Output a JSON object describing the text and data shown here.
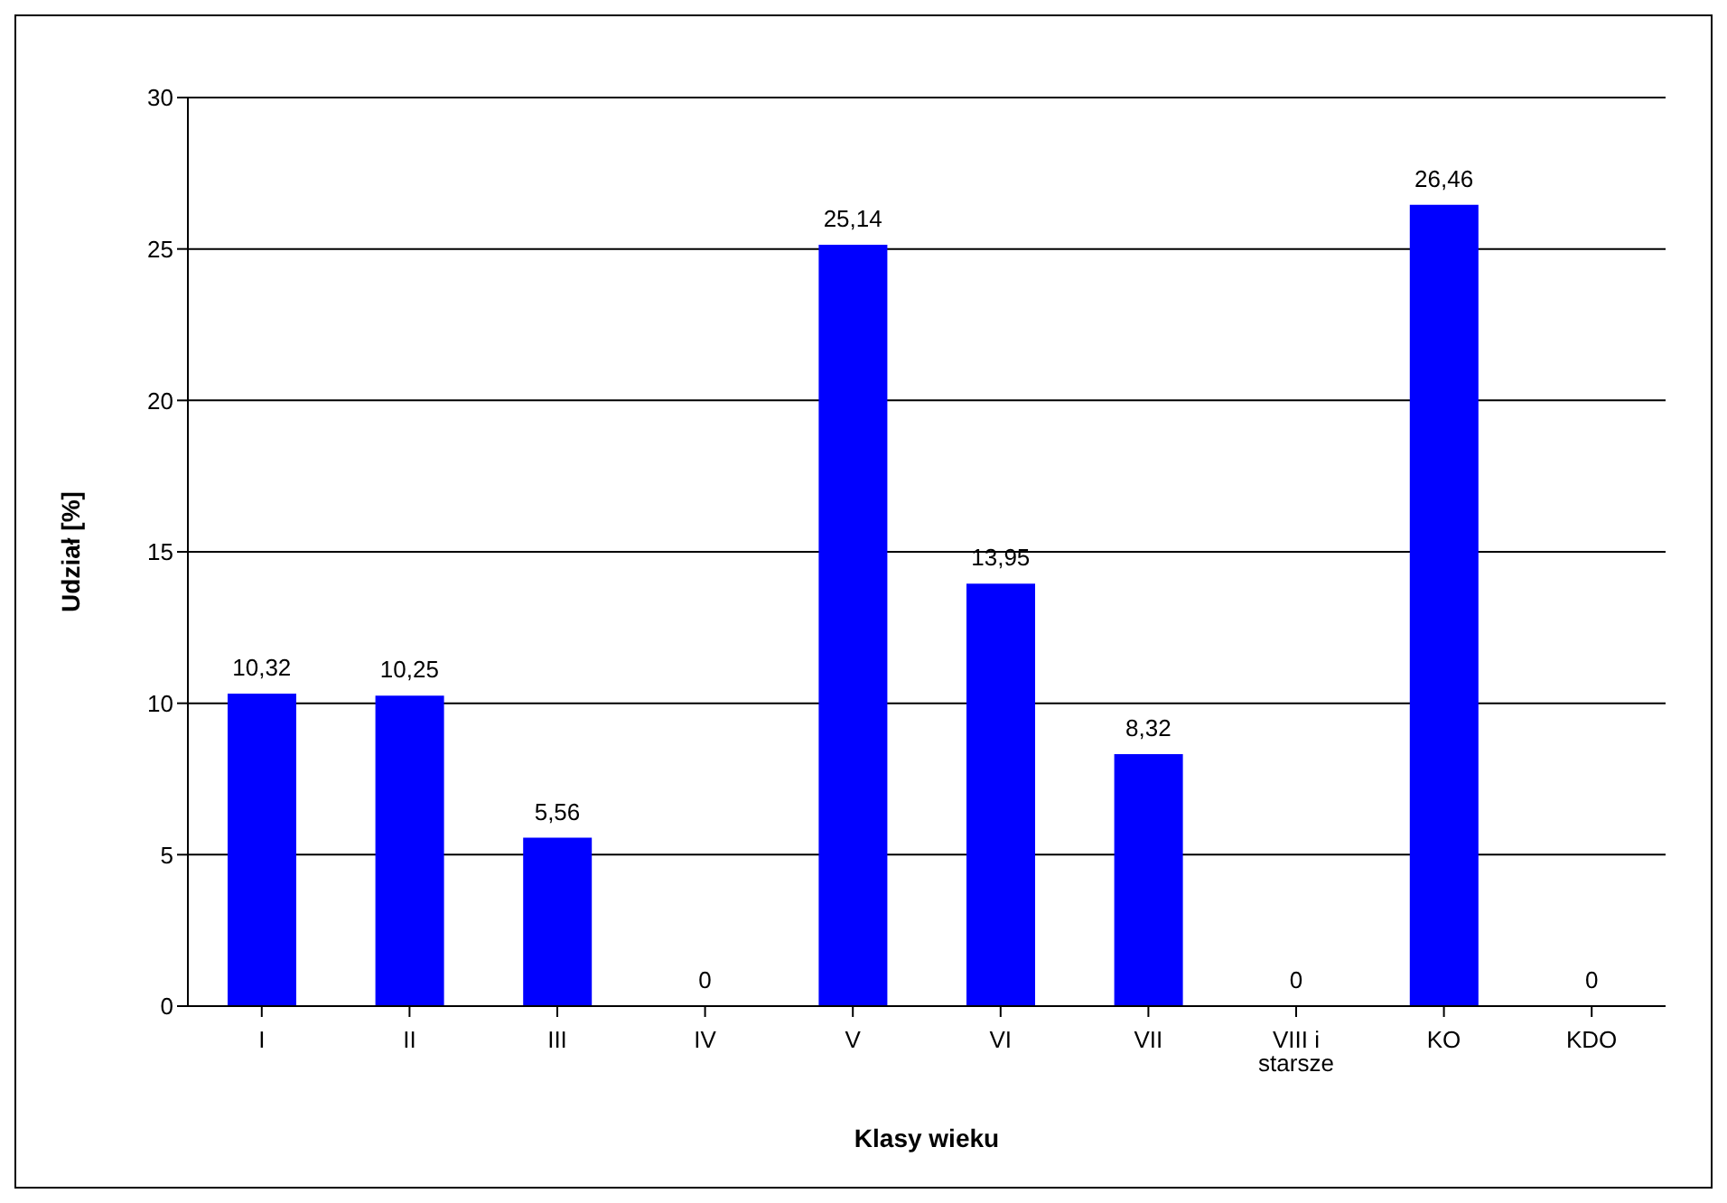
{
  "chart_data": {
    "type": "bar",
    "xlabel": "Klasy wieku",
    "ylabel": "Udział [%]",
    "categories": [
      "I",
      "II",
      "III",
      "IV",
      "V",
      "VI",
      "VII",
      "VIII i starsze",
      "KO",
      "KDO"
    ],
    "values": [
      10.32,
      10.25,
      5.56,
      0,
      25.14,
      13.95,
      8.32,
      0,
      26.46,
      0
    ],
    "value_labels": [
      "10,32",
      "10,25",
      "5,56",
      "0",
      "25,14",
      "13,95",
      "8,32",
      "0",
      "26,46",
      "0"
    ],
    "color": "#0000ff",
    "ylim": [
      0,
      30
    ],
    "yticks": [
      0,
      5,
      10,
      15,
      20,
      25,
      30
    ],
    "grid": "y"
  }
}
